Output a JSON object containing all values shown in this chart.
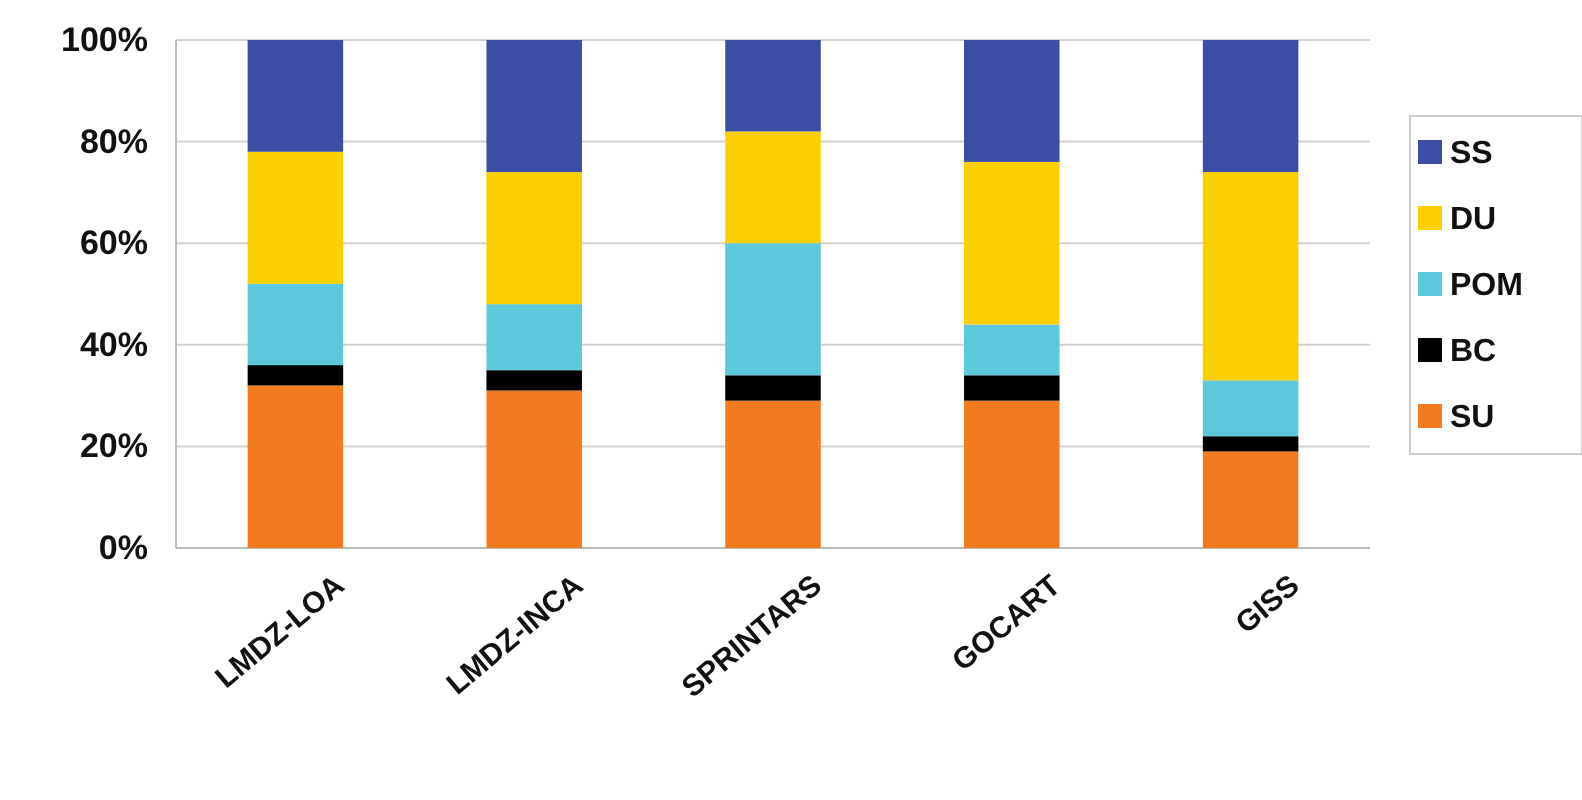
{
  "chart_data": {
    "type": "bar",
    "stacked": true,
    "categories": [
      "LMDZ-LOA",
      "LMDZ-INCA",
      "SPRINTARS",
      "GOCART",
      "GISS"
    ],
    "series": [
      {
        "name": "SU",
        "color": "#f47a20",
        "values": [
          32,
          31,
          29,
          29,
          19
        ]
      },
      {
        "name": "BC",
        "color": "#000000",
        "values": [
          4,
          4,
          5,
          5,
          3
        ]
      },
      {
        "name": "POM",
        "color": "#5bc8dc",
        "values": [
          16,
          13,
          26,
          10,
          11
        ]
      },
      {
        "name": "DU",
        "color": "#fcd000",
        "values": [
          26,
          26,
          22,
          32,
          41
        ]
      },
      {
        "name": "SS",
        "color": "#3a4fa3",
        "values": [
          22,
          26,
          18,
          24,
          26
        ]
      }
    ],
    "ylim": [
      0,
      100
    ],
    "yticks": [
      {
        "value": 0,
        "label": "0%"
      },
      {
        "value": 20,
        "label": "20%"
      },
      {
        "value": 40,
        "label": "40%"
      },
      {
        "value": 60,
        "label": "60%"
      },
      {
        "value": 80,
        "label": "80%"
      },
      {
        "value": 100,
        "label": "100%"
      }
    ],
    "grid": "y",
    "legend": "right"
  }
}
